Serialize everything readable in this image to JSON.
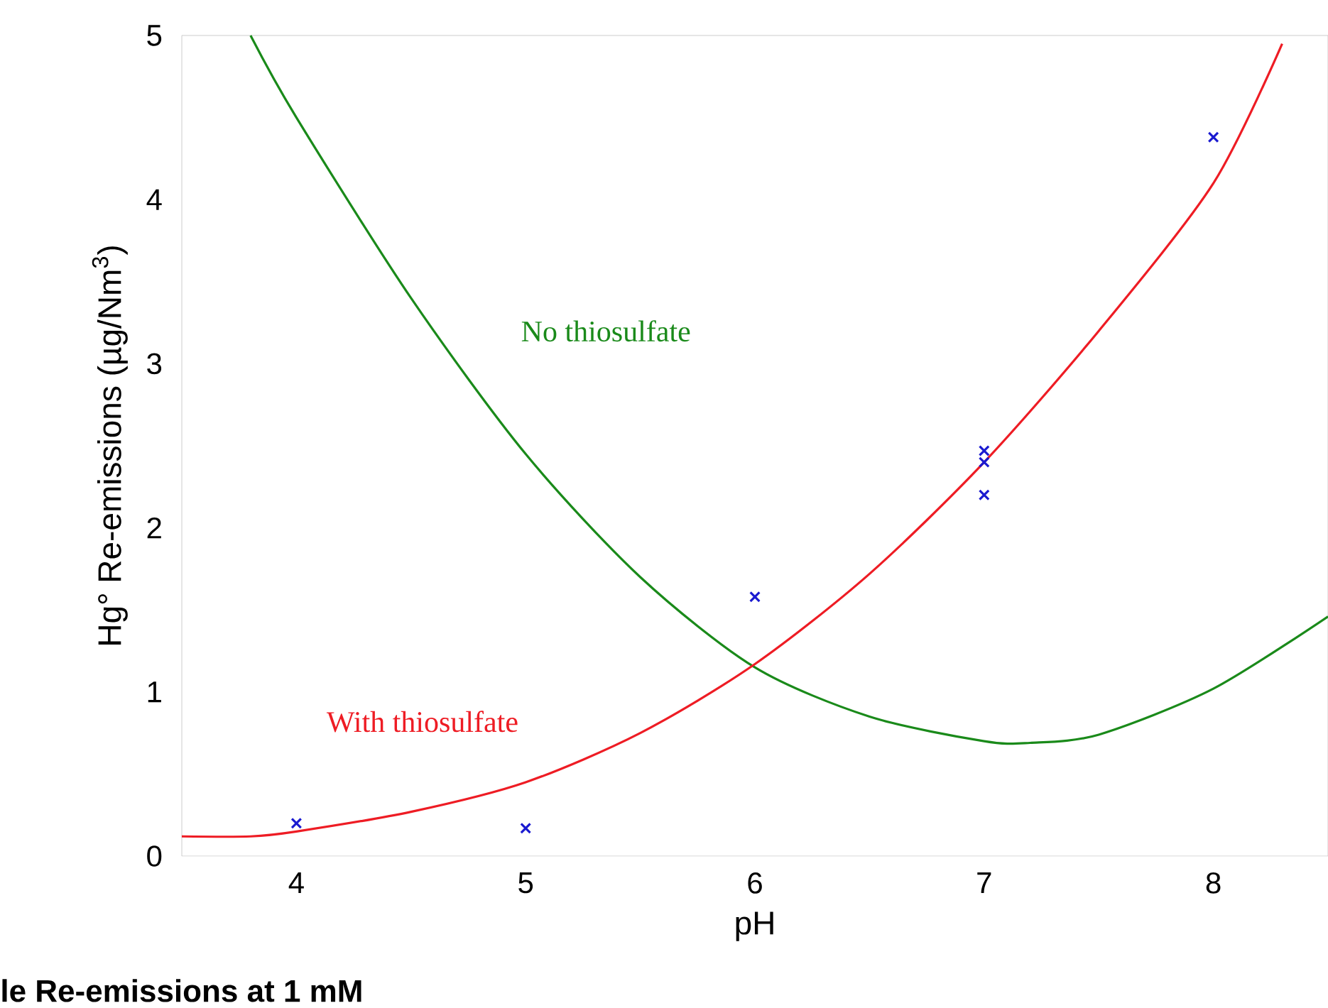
{
  "chart_data": {
    "type": "line",
    "xlabel": "pH",
    "ylabel": "Hg° Re-emissions (µg/Nm$^{3}$)",
    "xlim": [
      3.5,
      8.5
    ],
    "xticks": [
      4,
      5,
      6,
      7,
      8
    ],
    "ylim": [
      0,
      5
    ],
    "yticks": [
      0,
      1,
      2,
      3,
      4,
      5
    ],
    "grid": false,
    "series": [
      {
        "name": "No thiosulfate",
        "color": "#1a8a1a",
        "x": [
          3.8,
          4,
          4.5,
          5,
          5.5,
          6,
          6.5,
          7,
          7.2,
          7.5,
          8,
          8.5
        ],
        "values": [
          5,
          4.5,
          3.4,
          2.45,
          1.7,
          1.15,
          0.85,
          0.7,
          0.69,
          0.74,
          1.02,
          1.46
        ],
        "marker": "none"
      },
      {
        "name": "With thiosulfate",
        "color": "#ee1c24",
        "x": [
          3.5,
          3.8,
          4,
          4.5,
          5,
          5.5,
          6,
          6.5,
          7,
          7.5,
          8,
          8.3
        ],
        "values": [
          0.12,
          0.12,
          0.15,
          0.27,
          0.45,
          0.75,
          1.17,
          1.72,
          2.4,
          3.2,
          4.1,
          4.95
        ],
        "marker": "none"
      },
      {
        "type": "scatter",
        "color": "#1a1ad0",
        "x": [
          4,
          5,
          6,
          7,
          7,
          7,
          8
        ],
        "values": [
          0.2,
          0.17,
          1.58,
          2.47,
          2.4,
          2.2,
          4.38
        ],
        "marker": "cross"
      }
    ],
    "annotations": [
      "le Re-emissions at 1 mM"
    ]
  }
}
